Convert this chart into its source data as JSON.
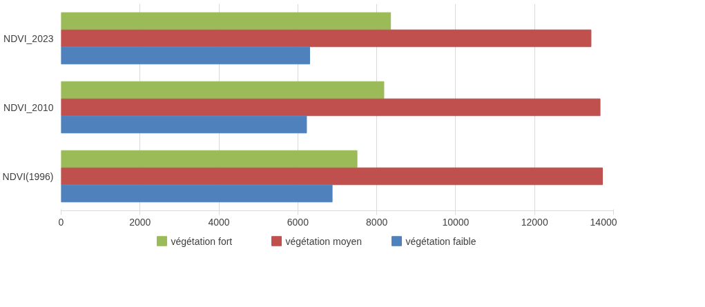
{
  "chart_data": {
    "type": "bar",
    "orientation": "horizontal",
    "categories": [
      "NDVI_2023",
      "NDVI_2010",
      "NDVI(1996)"
    ],
    "series": [
      {
        "name": "végétation fort",
        "color": "#9bbb59",
        "values": [
          8350,
          8180,
          7500
        ]
      },
      {
        "name": "végétation moyen",
        "color": "#c0504d",
        "values": [
          13430,
          13660,
          13720
        ]
      },
      {
        "name": "végétation faible",
        "color": "#4f81bd",
        "values": [
          6300,
          6220,
          6870
        ]
      }
    ],
    "xlim": [
      0,
      14000
    ],
    "xticks": [
      0,
      2000,
      4000,
      6000,
      8000,
      10000,
      12000,
      14000
    ],
    "grid": "x",
    "legend": "bottom"
  }
}
